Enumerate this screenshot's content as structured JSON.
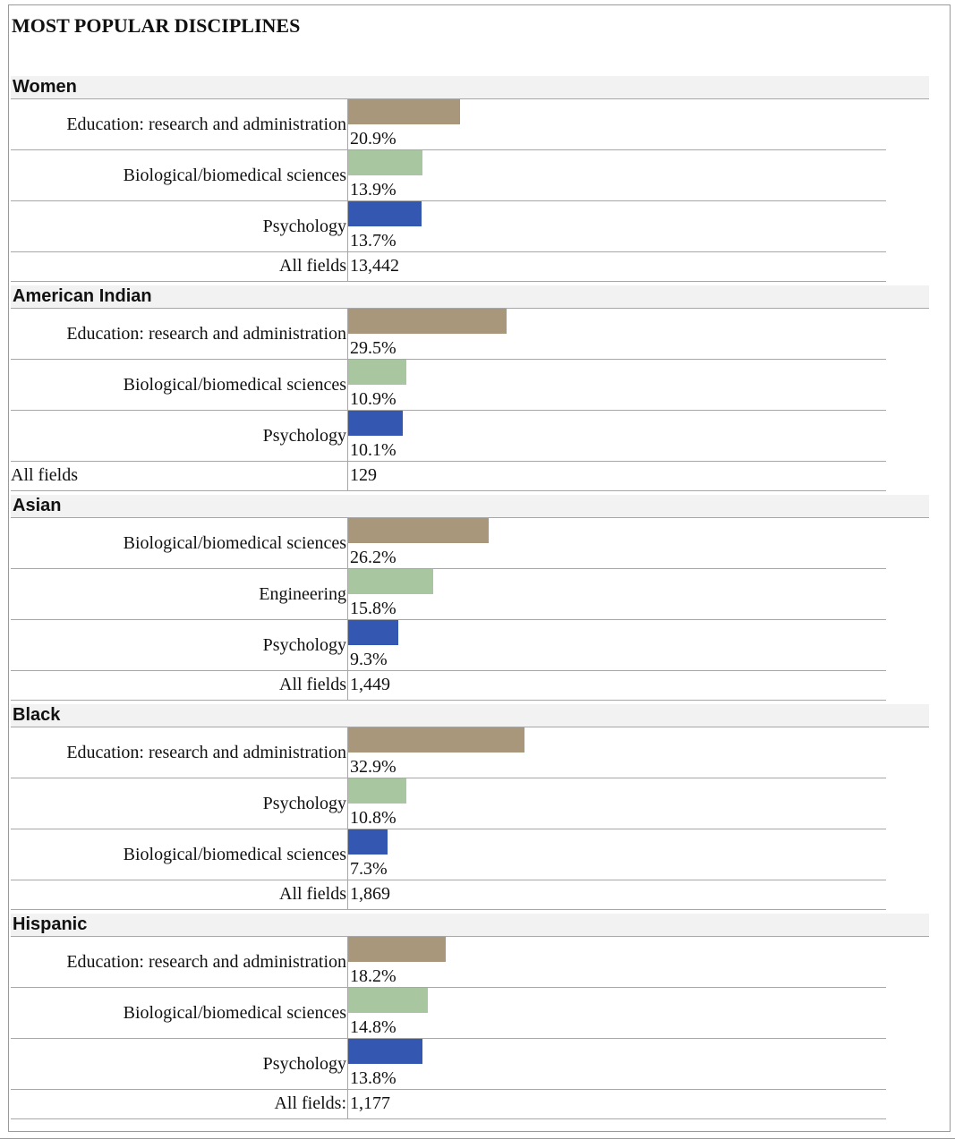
{
  "chart_data": {
    "type": "bar",
    "title": "MOST POPULAR DISCIPLINES",
    "colors": [
      "#a8977b",
      "#a8c69f",
      "#3457b1"
    ],
    "value_max": 100,
    "groups": [
      {
        "name": "Women",
        "rows": [
          {
            "label": "Education: research and administration",
            "value": 20.9,
            "display": "20.9%"
          },
          {
            "label": "Biological/biomedical sciences",
            "value": 13.9,
            "display": "13.9%"
          },
          {
            "label": "Psychology",
            "value": 13.7,
            "display": "13.7%"
          }
        ],
        "total_label": "All fields",
        "total_value": "13,442",
        "total_align": "right"
      },
      {
        "name": "American Indian",
        "rows": [
          {
            "label": "Education: research and administration",
            "value": 29.5,
            "display": "29.5%"
          },
          {
            "label": "Biological/biomedical sciences",
            "value": 10.9,
            "display": "10.9%"
          },
          {
            "label": "Psychology",
            "value": 10.1,
            "display": "10.1%"
          }
        ],
        "total_label": "All fields",
        "total_value": "129",
        "total_align": "left"
      },
      {
        "name": "Asian",
        "rows": [
          {
            "label": "Biological/biomedical sciences",
            "value": 26.2,
            "display": "26.2%"
          },
          {
            "label": "Engineering",
            "value": 15.8,
            "display": "15.8%"
          },
          {
            "label": "Psychology",
            "value": 9.3,
            "display": "9.3%"
          }
        ],
        "total_label": "All fields",
        "total_value": "1,449",
        "total_align": "right"
      },
      {
        "name": "Black",
        "rows": [
          {
            "label": "Education: research and administration",
            "value": 32.9,
            "display": "32.9%"
          },
          {
            "label": "Psychology",
            "value": 10.8,
            "display": "10.8%"
          },
          {
            "label": "Biological/biomedical sciences",
            "value": 7.3,
            "display": "7.3%"
          }
        ],
        "total_label": "All fields",
        "total_value": "1,869",
        "total_align": "right"
      },
      {
        "name": "Hispanic",
        "rows": [
          {
            "label": "Education: research and administration",
            "value": 18.2,
            "display": "18.2%"
          },
          {
            "label": "Biological/biomedical sciences",
            "value": 14.8,
            "display": "14.8%"
          },
          {
            "label": "Psychology",
            "value": 13.8,
            "display": "13.8%"
          }
        ],
        "total_label": "All fields:",
        "total_value": "1,177",
        "total_align": "right"
      }
    ]
  }
}
